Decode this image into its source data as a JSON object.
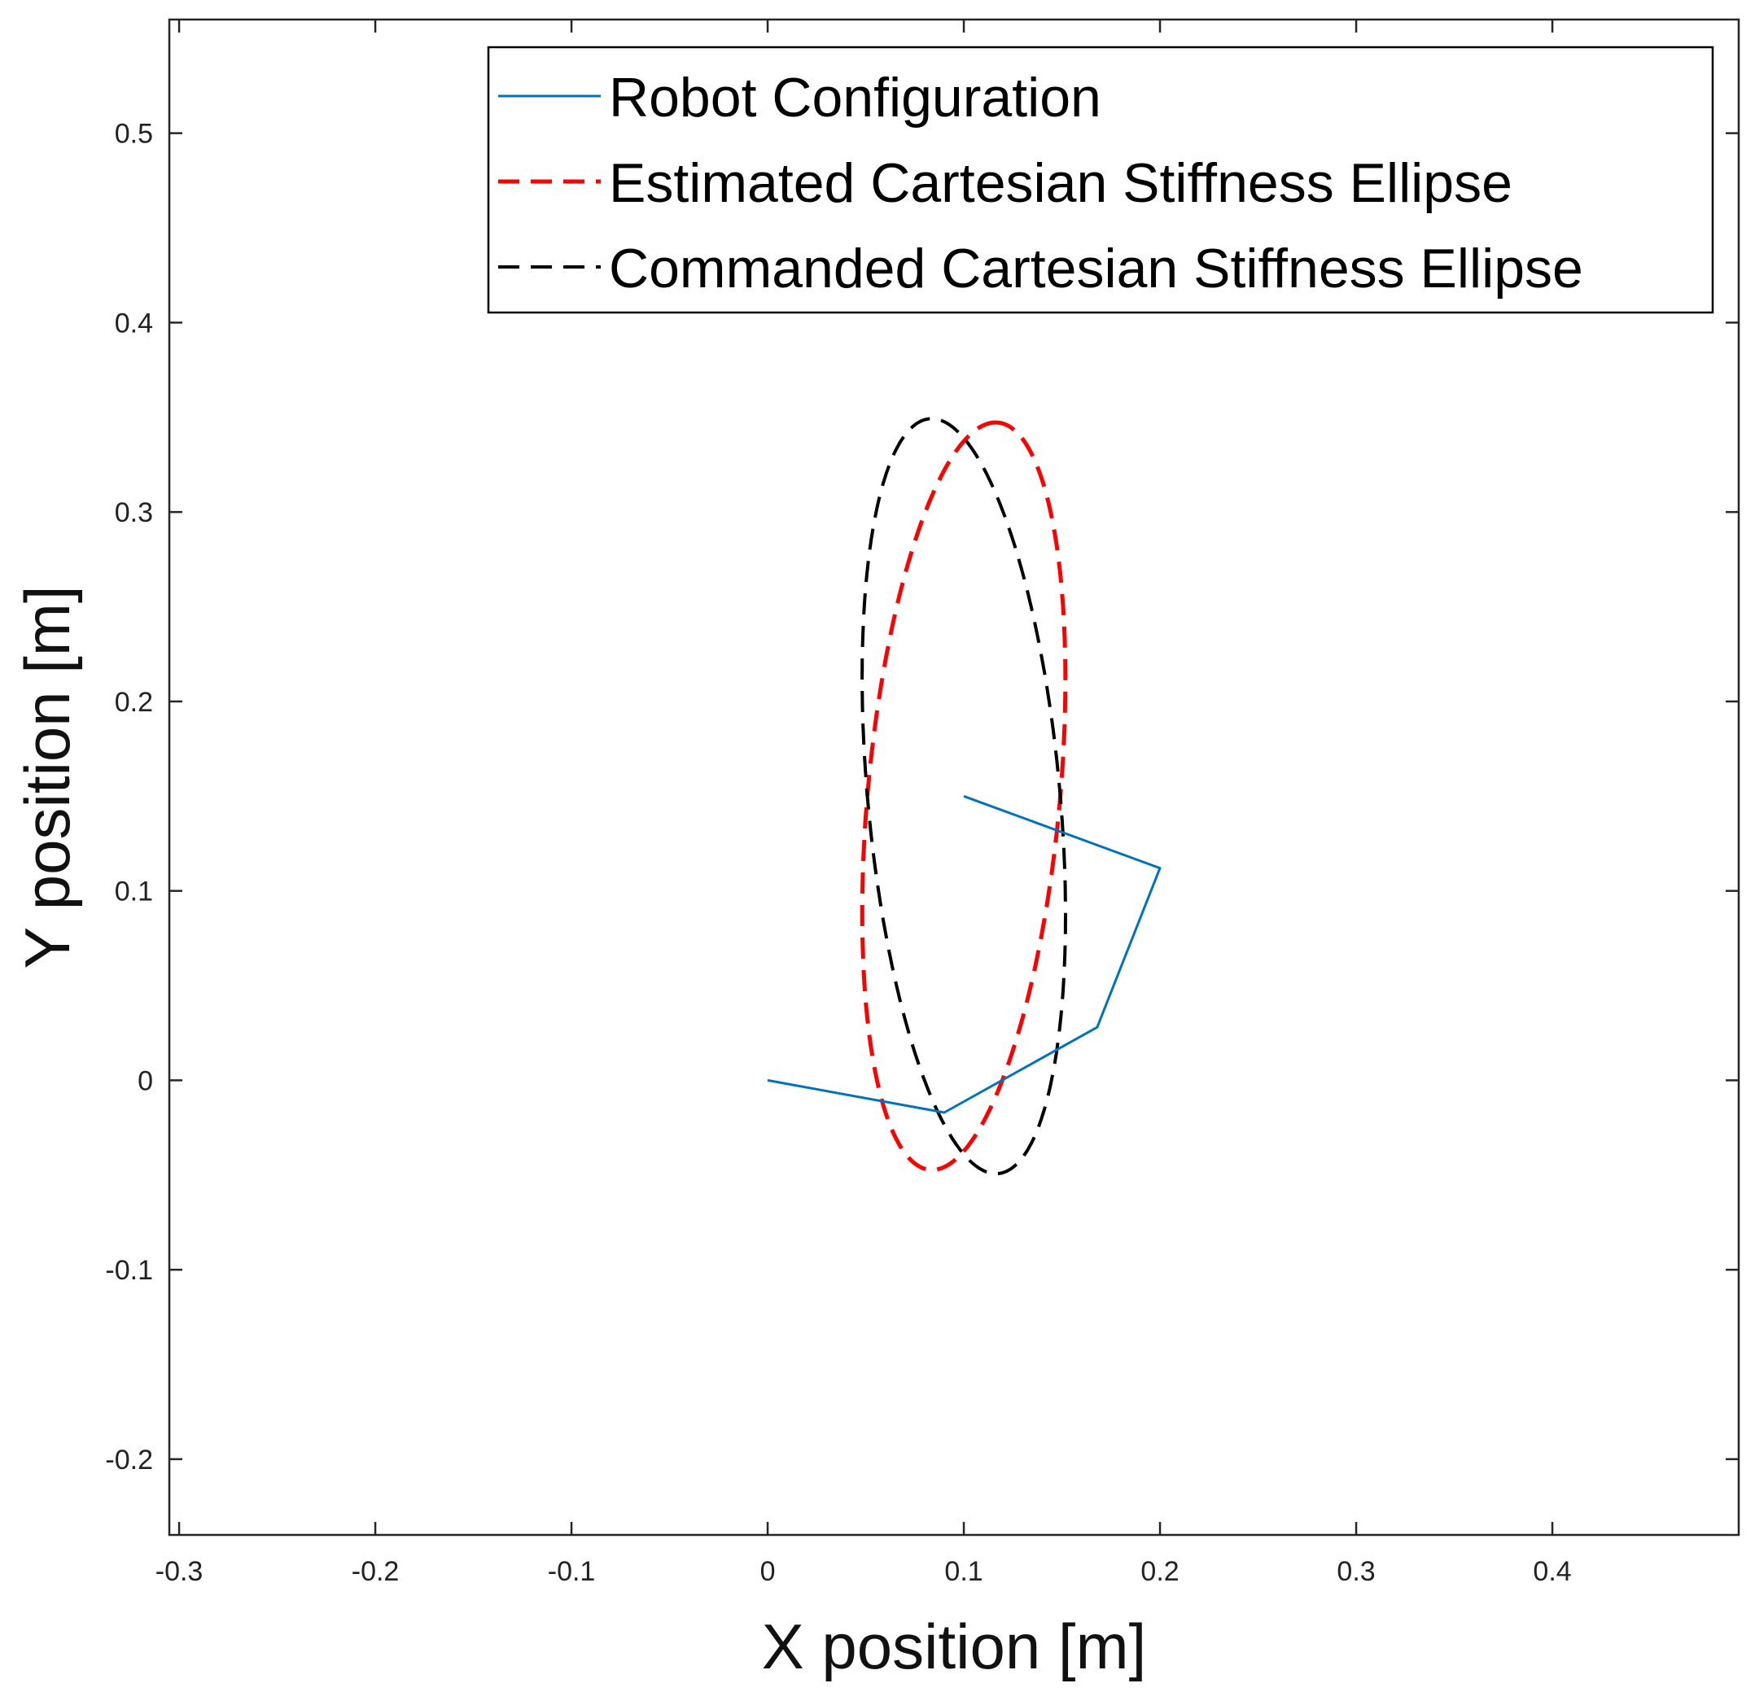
{
  "chart_data": {
    "type": "line",
    "title": "",
    "xlabel": "X position [m]",
    "ylabel": "Y position [m]",
    "xlim": [
      -0.305,
      0.495
    ],
    "ylim": [
      -0.24,
      0.56
    ],
    "xticks": [
      -0.3,
      -0.2,
      -0.1,
      0,
      0.1,
      0.2,
      0.3,
      0.4
    ],
    "xtick_labels": [
      "-0.3",
      "-0.2",
      "-0.1",
      "0",
      "0.1",
      "0.2",
      "0.3",
      "0.4"
    ],
    "yticks": [
      -0.2,
      -0.1,
      0,
      0.1,
      0.2,
      0.3,
      0.4,
      0.5
    ],
    "ytick_labels": [
      "-0.2",
      "-0.1",
      "0",
      "0.1",
      "0.2",
      "0.3",
      "0.4",
      "0.5"
    ],
    "grid": false,
    "legend_position": "top-right",
    "series": [
      {
        "name": "Robot Configuration",
        "style": "solid",
        "color": "#0072BD",
        "x": [
          0.0,
          0.09,
          0.168,
          0.2,
          0.1
        ],
        "y": [
          0.0,
          -0.017,
          0.028,
          0.112,
          0.15
        ]
      },
      {
        "name": "Estimated Cartesian Stiffness Ellipse",
        "style": "dashed",
        "color": "#ff0000",
        "ellipse": {
          "center": [
            0.1,
            0.15
          ],
          "semi_major": 0.198,
          "semi_minor": 0.049,
          "angle_deg": 85
        }
      },
      {
        "name": "Commanded Cartesian Stiffness Ellipse",
        "style": "dashed",
        "color": "#000000",
        "ellipse": {
          "center": [
            0.1,
            0.15
          ],
          "semi_major": 0.2,
          "semi_minor": 0.049,
          "angle_deg": 95
        }
      }
    ]
  }
}
